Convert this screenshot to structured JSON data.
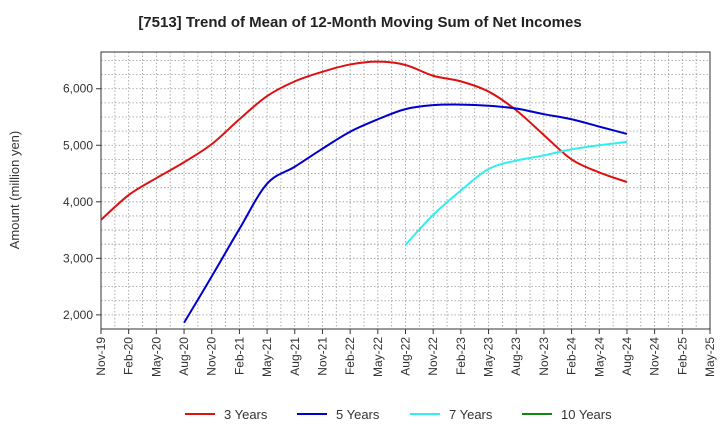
{
  "chart_data": {
    "type": "line",
    "title": "[7513]  Trend of Mean of 12-Month Moving Sum of Net Incomes",
    "xlabel": "",
    "ylabel": "Amount (million yen)",
    "ylim": [
      1750,
      6650
    ],
    "yticks": [
      2000,
      3000,
      4000,
      5000,
      6000
    ],
    "ytick_labels": [
      "2,000",
      "3,000",
      "4,000",
      "5,000",
      "6,000"
    ],
    "categories": [
      "Nov-19",
      "Feb-20",
      "May-20",
      "Aug-20",
      "Nov-20",
      "Feb-21",
      "May-21",
      "Aug-21",
      "Nov-21",
      "Feb-22",
      "May-22",
      "Aug-22",
      "Nov-22",
      "Feb-23",
      "May-23",
      "Aug-23",
      "Nov-23",
      "Feb-24",
      "May-24",
      "Aug-24",
      "Nov-24",
      "Feb-25",
      "May-25"
    ],
    "grid": true,
    "legend_position": "bottom",
    "series": [
      {
        "name": "3 Years",
        "color": "#dd1111",
        "values": [
          3680,
          4120,
          4420,
          4700,
          5020,
          5460,
          5870,
          6130,
          6300,
          6430,
          6480,
          6420,
          6230,
          6130,
          5950,
          5620,
          5180,
          4750,
          4520,
          4350,
          null,
          null,
          null
        ]
      },
      {
        "name": "5 Years",
        "color": "#0000cc",
        "values": [
          null,
          null,
          null,
          1860,
          2680,
          3520,
          4320,
          4620,
          4940,
          5240,
          5460,
          5640,
          5710,
          5720,
          5700,
          5650,
          5550,
          5460,
          5330,
          5200,
          null,
          null,
          null
        ]
      },
      {
        "name": "7 Years",
        "color": "#33eeee",
        "values": [
          null,
          null,
          null,
          null,
          null,
          null,
          null,
          null,
          null,
          null,
          null,
          3240,
          3770,
          4200,
          4580,
          4730,
          4820,
          4930,
          5000,
          5060,
          null,
          null,
          null
        ]
      },
      {
        "name": "10 Years",
        "color": "#118811",
        "values": [
          null,
          null,
          null,
          null,
          null,
          null,
          null,
          null,
          null,
          null,
          null,
          null,
          null,
          null,
          null,
          null,
          null,
          null,
          null,
          null,
          null,
          null,
          null
        ]
      }
    ]
  }
}
